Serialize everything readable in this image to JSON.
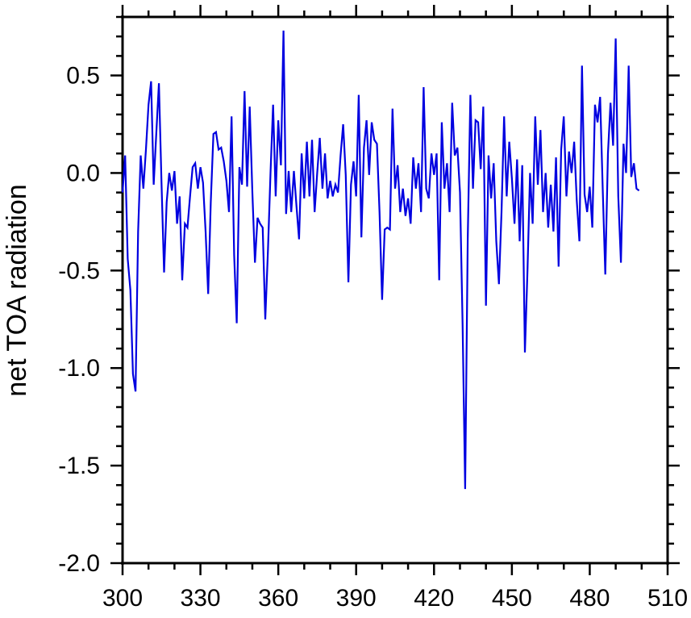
{
  "chart_data": {
    "type": "line",
    "title": "",
    "xlabel": "",
    "ylabel": "net TOA radiation",
    "grid": false,
    "legend": "none",
    "xlim": [
      300,
      510
    ],
    "ylim": [
      -2.0,
      0.8
    ],
    "x_major_ticks": [
      300,
      330,
      360,
      390,
      420,
      450,
      480,
      510
    ],
    "x_tick_labels": [
      "300",
      "330",
      "360",
      "390",
      "420",
      "450",
      "480",
      "510"
    ],
    "x_minor_step": 10,
    "y_major_ticks": [
      0.5,
      0.0,
      -0.5,
      -1.0,
      -1.5,
      -2.0
    ],
    "y_tick_labels": [
      "0.5",
      "0.0",
      "-0.5",
      "-1.0",
      "-1.5",
      "-2.0"
    ],
    "y_minor_step": 0.1,
    "x_start": 300,
    "x_step": 1,
    "x_end": 499,
    "series": [
      {
        "name": "net TOA radiation",
        "color": "#0000e0",
        "values": [
          -0.1,
          0.09,
          -0.44,
          -0.6,
          -1.03,
          -1.12,
          -0.3,
          0.09,
          -0.08,
          0.12,
          0.35,
          0.47,
          -0.06,
          0.2,
          0.46,
          -0.05,
          -0.51,
          -0.15,
          0.0,
          -0.09,
          0.01,
          -0.26,
          -0.12,
          -0.55,
          -0.26,
          -0.28,
          -0.12,
          0.03,
          0.05,
          -0.08,
          0.03,
          -0.05,
          -0.3,
          -0.62,
          -0.15,
          0.2,
          0.21,
          0.12,
          0.13,
          0.06,
          -0.04,
          -0.2,
          0.29,
          -0.42,
          -0.77,
          0.03,
          -0.06,
          0.42,
          -0.07,
          0.34,
          -0.1,
          -0.46,
          -0.23,
          -0.26,
          -0.28,
          -0.75,
          -0.4,
          0.0,
          0.35,
          -0.12,
          0.27,
          0.04,
          0.73,
          -0.21,
          0.01,
          -0.2,
          0.01,
          -0.17,
          -0.34,
          0.1,
          -0.13,
          0.16,
          -0.12,
          0.17,
          -0.2,
          0.0,
          0.18,
          -0.08,
          0.1,
          -0.13,
          -0.04,
          -0.12,
          -0.06,
          -0.1,
          0.09,
          0.25,
          -0.01,
          -0.56,
          -0.06,
          0.06,
          -0.12,
          0.4,
          -0.33,
          0.13,
          0.27,
          -0.01,
          0.26,
          0.17,
          0.15,
          -0.2,
          -0.65,
          -0.29,
          -0.28,
          -0.29,
          0.33,
          -0.08,
          0.04,
          -0.2,
          -0.08,
          -0.22,
          -0.13,
          -0.26,
          0.08,
          -0.08,
          0.05,
          -0.2,
          0.44,
          -0.08,
          -0.13,
          0.1,
          -0.01,
          0.1,
          -0.55,
          0.26,
          -0.08,
          0.05,
          -0.2,
          0.36,
          0.09,
          0.13,
          -0.1,
          -0.77,
          -1.62,
          -0.34,
          0.4,
          -0.08,
          0.27,
          0.26,
          0.02,
          0.34,
          -0.68,
          0.09,
          -0.13,
          0.05,
          -0.35,
          -0.57,
          -0.2,
          0.29,
          -0.12,
          0.16,
          -0.03,
          -0.26,
          0.07,
          -0.35,
          0.04,
          -0.92,
          -0.5,
          0.0,
          -0.26,
          0.29,
          -0.06,
          0.22,
          -0.2,
          0.0,
          -0.28,
          -0.06,
          -0.3,
          0.08,
          -0.48,
          0.12,
          0.29,
          -0.12,
          0.11,
          0.0,
          0.16,
          -0.14,
          -0.35,
          0.55,
          -0.11,
          -0.2,
          -0.07,
          -0.28,
          0.35,
          0.26,
          0.39,
          -0.08,
          -0.52,
          0.1,
          0.36,
          0.14,
          0.69,
          -0.12,
          -0.46,
          0.15,
          0.0,
          0.55,
          -0.02,
          0.05,
          -0.08,
          -0.09
        ]
      }
    ]
  },
  "colors": {
    "line": "#0000e0",
    "axis": "#000000",
    "text": "#000000",
    "background": "#ffffff"
  }
}
